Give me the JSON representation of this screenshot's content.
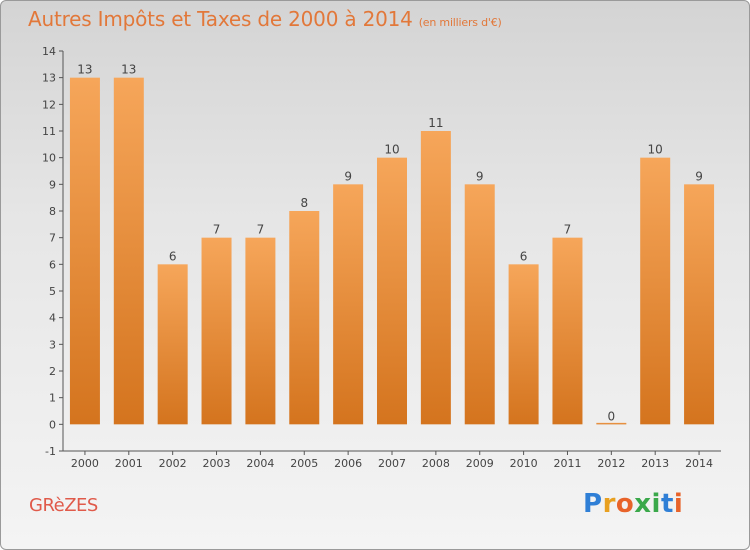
{
  "header": {
    "title": "Autres Impôts et Taxes de 2000 à 2014",
    "unit": "(en milliers d'€)"
  },
  "commune": "GRèZES",
  "brand": {
    "letters": [
      "P",
      "r",
      "o",
      "x",
      "i",
      "t",
      "i"
    ],
    "colors": [
      "#2f7fd6",
      "#e8a020",
      "#e8632a",
      "#3aa84a",
      "#3aa84a",
      "#2f7fd6",
      "#e8632a"
    ]
  },
  "colors": {
    "bar_light": "#f6a65a",
    "bar_dark": "#d4741e",
    "title": "#e2783a",
    "axis_text": "#444444"
  },
  "chart_data": {
    "type": "bar",
    "title": "Autres Impôts et Taxes de 2000 à 2014",
    "subtitle": "(en milliers d'€)",
    "categories": [
      "2000",
      "2001",
      "2002",
      "2003",
      "2004",
      "2005",
      "2006",
      "2007",
      "2008",
      "2009",
      "2010",
      "2011",
      "2012",
      "2013",
      "2014"
    ],
    "values": [
      13,
      13,
      6,
      7,
      7,
      8,
      9,
      10,
      11,
      9,
      6,
      7,
      0,
      10,
      9
    ],
    "data_labels": [
      "13",
      "13",
      "6",
      "7",
      "7",
      "8",
      "9",
      "10",
      "11",
      "9",
      "6",
      "7",
      "0",
      "10",
      "9"
    ],
    "yticks": [
      "-1",
      "0",
      "1",
      "2",
      "3",
      "4",
      "5",
      "6",
      "7",
      "8",
      "9",
      "10",
      "11",
      "12",
      "13",
      "14"
    ],
    "ylim": [
      -1,
      14
    ],
    "grid": false,
    "legend": "none"
  }
}
